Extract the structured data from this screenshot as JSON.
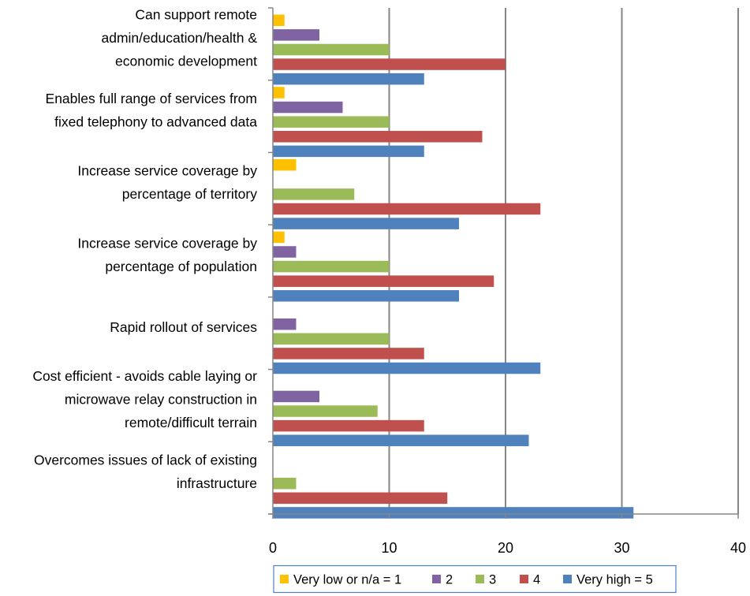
{
  "chart_data": {
    "type": "bar",
    "orientation": "horizontal",
    "categories": [
      {
        "lines": [
          "Can support remote",
          "admin/education/health &",
          "economic development"
        ]
      },
      {
        "lines": [
          "Enables full range of services from",
          "fixed telephony to advanced data"
        ]
      },
      {
        "lines": [
          "Increase service coverage by",
          "percentage of territory"
        ]
      },
      {
        "lines": [
          "Increase service coverage by",
          "percentage of population"
        ]
      },
      {
        "lines": [
          "Rapid rollout of services"
        ]
      },
      {
        "lines": [
          "Cost efficient - avoids cable laying or",
          "microwave relay construction in",
          "remote/difficult terrain"
        ]
      },
      {
        "lines": [
          "Overcomes issues of lack of existing",
          "infrastructure"
        ]
      }
    ],
    "series": [
      {
        "name": "Very low or n/a = 1",
        "color": "#FFC000",
        "values": [
          1,
          1,
          2,
          1,
          0,
          0,
          0
        ]
      },
      {
        "name": "2",
        "color": "#8064A2",
        "values": [
          4,
          6,
          0,
          2,
          2,
          4,
          0
        ]
      },
      {
        "name": "3",
        "color": "#9BBB59",
        "values": [
          10,
          10,
          7,
          10,
          10,
          9,
          2
        ]
      },
      {
        "name": "4",
        "color": "#C0504D",
        "values": [
          20,
          18,
          23,
          19,
          13,
          13,
          15
        ]
      },
      {
        "name": "Very high = 5",
        "color": "#4F81BD",
        "values": [
          13,
          13,
          16,
          16,
          23,
          22,
          31
        ]
      }
    ],
    "xlim": [
      0,
      40
    ],
    "xticks": [
      "0",
      "10",
      "20",
      "30",
      "40"
    ],
    "grid": true,
    "legend_position": "bottom"
  }
}
